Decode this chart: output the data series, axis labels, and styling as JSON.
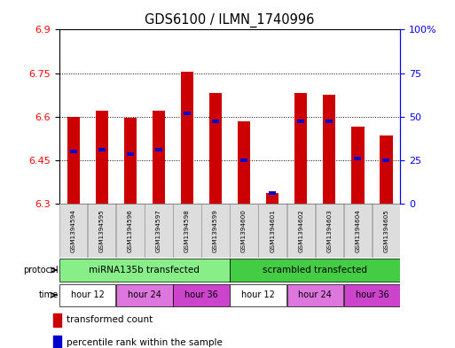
{
  "title": "GDS6100 / ILMN_1740996",
  "samples": [
    "GSM1394594",
    "GSM1394595",
    "GSM1394596",
    "GSM1394597",
    "GSM1394598",
    "GSM1394599",
    "GSM1394600",
    "GSM1394601",
    "GSM1394602",
    "GSM1394603",
    "GSM1394604",
    "GSM1394605"
  ],
  "bar_bottom": 6.3,
  "bar_tops": [
    6.6,
    6.62,
    6.595,
    6.62,
    6.755,
    6.68,
    6.585,
    6.335,
    6.68,
    6.675,
    6.565,
    6.535
  ],
  "blue_values": [
    6.48,
    6.485,
    6.47,
    6.485,
    6.61,
    6.585,
    6.45,
    6.337,
    6.585,
    6.585,
    6.455,
    6.45
  ],
  "ylim": [
    6.3,
    6.9
  ],
  "yticks": [
    6.3,
    6.45,
    6.6,
    6.75,
    6.9
  ],
  "y2ticks": [
    0,
    25,
    50,
    75,
    100
  ],
  "bar_color": "#cc0000",
  "blue_color": "#0000cc",
  "protocol_labels": [
    "miRNA135b transfected",
    "scrambled transfected"
  ],
  "proto_colors": [
    "#88ee88",
    "#44cc44"
  ],
  "time_groups": [
    {
      "label": "hour 12",
      "cols": [
        0,
        1
      ],
      "color": "#ffffff"
    },
    {
      "label": "hour 24",
      "cols": [
        2,
        3
      ],
      "color": "#dd77dd"
    },
    {
      "label": "hour 36",
      "cols": [
        4,
        5
      ],
      "color": "#cc44cc"
    },
    {
      "label": "hour 12",
      "cols": [
        6,
        7
      ],
      "color": "#ffffff"
    },
    {
      "label": "hour 24",
      "cols": [
        8,
        9
      ],
      "color": "#dd77dd"
    },
    {
      "label": "hour 36",
      "cols": [
        10,
        11
      ],
      "color": "#cc44cc"
    }
  ],
  "gridlines": [
    6.45,
    6.6,
    6.75
  ]
}
